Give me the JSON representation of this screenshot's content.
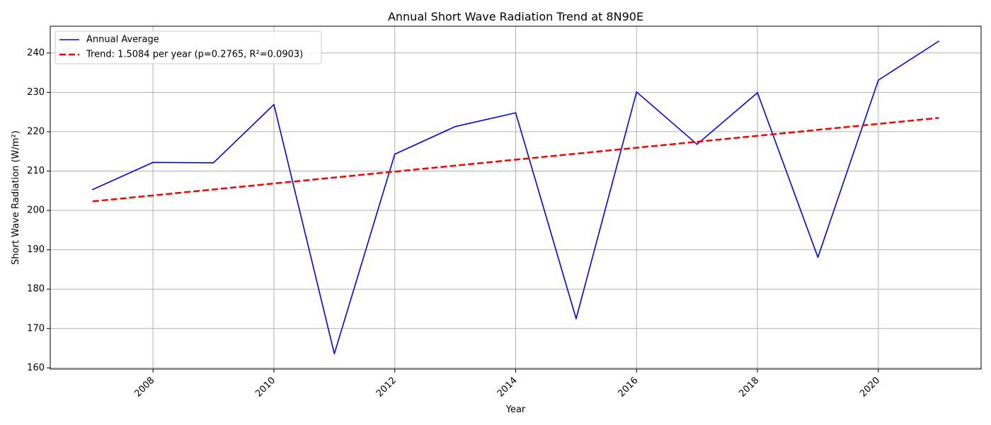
{
  "chart_data": {
    "type": "line",
    "title": "Annual Short Wave Radiation Trend at 8N90E",
    "xlabel": "Year",
    "ylabel": "Short Wave Radiation (W/m²)",
    "xlim": [
      2006.3,
      2021.7
    ],
    "ylim": [
      159.7,
      246.8
    ],
    "x_ticks": [
      2008,
      2010,
      2012,
      2014,
      2016,
      2018,
      2020
    ],
    "y_ticks": [
      160,
      170,
      180,
      190,
      200,
      210,
      220,
      230,
      240
    ],
    "grid": true,
    "legend_position": "top-left",
    "series": [
      {
        "name": "Annual Average",
        "color": "#0000ff",
        "style": "solid",
        "x": [
          2007,
          2008,
          2009,
          2010,
          2011,
          2012,
          2013,
          2014,
          2015,
          2016,
          2017,
          2018,
          2019,
          2020,
          2021
        ],
        "y": [
          205.3,
          212.2,
          212.1,
          226.9,
          163.6,
          214.3,
          221.3,
          224.8,
          172.5,
          230.1,
          216.8,
          229.9,
          188.1,
          233.1,
          243.0
        ]
      },
      {
        "name": "Trend: 1.5084 per year (p=0.2765, R²=0.0903)",
        "color": "#ff0000",
        "style": "dashed",
        "x": [
          2007,
          2021
        ],
        "y": [
          202.3,
          223.5
        ]
      }
    ]
  }
}
